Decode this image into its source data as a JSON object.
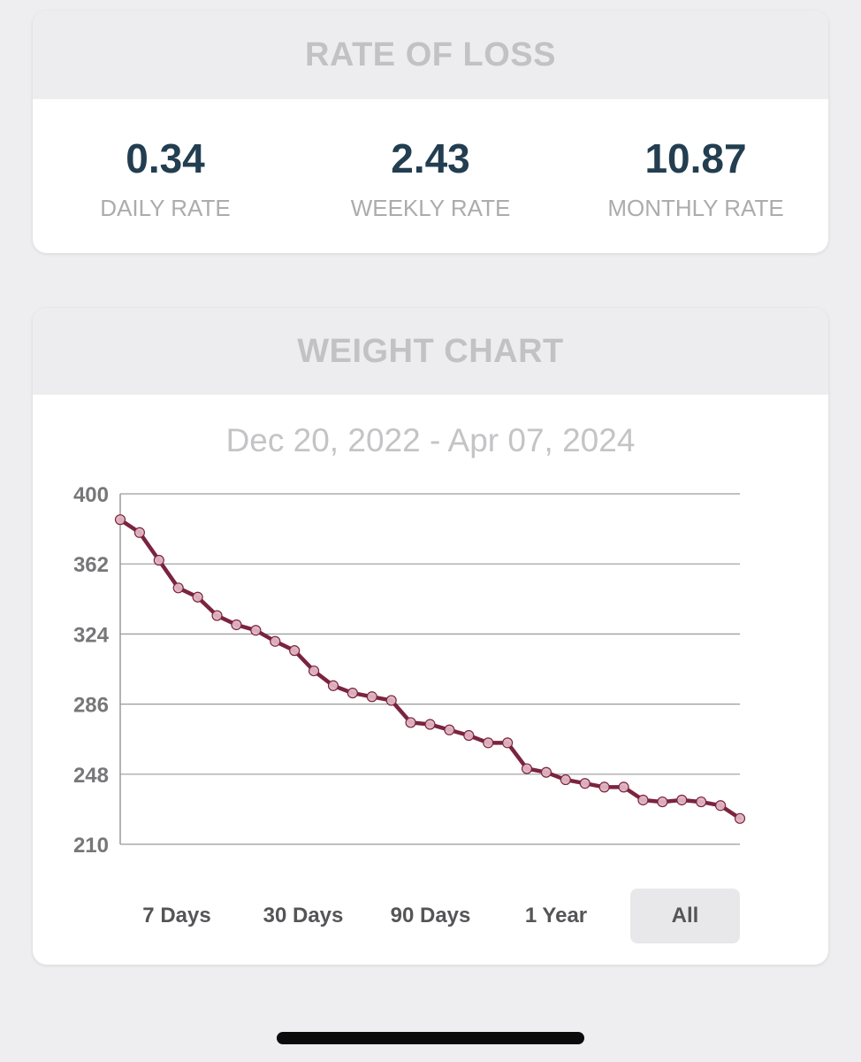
{
  "rate_card": {
    "title": "RATE OF LOSS",
    "rates": [
      {
        "value": "0.34",
        "label": "DAILY RATE"
      },
      {
        "value": "2.43",
        "label": "WEEKLY RATE"
      },
      {
        "value": "10.87",
        "label": "MONTHLY RATE"
      }
    ]
  },
  "chart_card": {
    "title": "WEIGHT CHART",
    "date_range": "Dec 20, 2022 - Apr 07, 2024",
    "ranges": [
      "7 Days",
      "30 Days",
      "90 Days",
      "1 Year",
      "All"
    ],
    "selected_range": "All"
  },
  "chart_data": {
    "type": "line",
    "yticks": [
      400,
      362,
      324,
      286,
      248,
      210
    ],
    "ylim": [
      210,
      400
    ],
    "grid": true,
    "line_color": "#7a2440",
    "marker_color": "#e0b4c0",
    "series": [
      {
        "values": [
          386,
          379,
          364,
          349,
          344,
          334,
          329,
          326,
          320,
          315,
          304,
          296,
          292,
          290,
          288,
          276,
          275,
          272,
          269,
          265,
          265,
          251,
          249,
          245,
          243,
          241,
          241,
          234,
          233,
          234,
          233,
          231,
          224
        ]
      }
    ]
  },
  "colors": {
    "background": "#eeeef0",
    "header_bg": "#ededef",
    "header_text": "#c2c2c4",
    "value_text": "#223e50"
  }
}
